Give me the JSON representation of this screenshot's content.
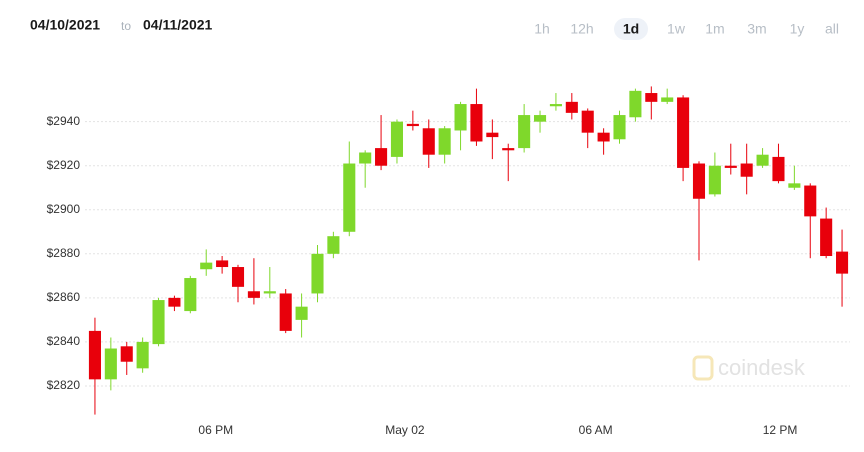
{
  "header": {
    "from": "04/10/2021",
    "separator": "to",
    "to": "04/11/2021",
    "ranges": [
      "1h",
      "12h",
      "1d",
      "1w",
      "1m",
      "3m",
      "1y",
      "all"
    ],
    "active_range": "1d"
  },
  "watermark": "coindesk",
  "chart_data": {
    "type": "candlestick",
    "categories": [
      null,
      null,
      null,
      null,
      null,
      null,
      null,
      null,
      null,
      null,
      null,
      null,
      null,
      null,
      null,
      null,
      null,
      null,
      null,
      null,
      null,
      null,
      null,
      null,
      null,
      null,
      null,
      null,
      null,
      null,
      null,
      null,
      null,
      null,
      null,
      null,
      null,
      null,
      null,
      null,
      null,
      null,
      null,
      null,
      null,
      null,
      null,
      null
    ],
    "open": [
      2845,
      2823,
      2838,
      2828,
      2839,
      2860,
      2854,
      2873,
      2877,
      2874,
      2863,
      2862,
      2862,
      2850,
      2862,
      2880,
      2890,
      2921,
      2928,
      2924,
      2939,
      2937,
      2925,
      2936,
      2948,
      2935,
      2928,
      2928,
      2940,
      2947,
      2949,
      2945,
      2935,
      2932,
      2942,
      2953,
      2949,
      2951,
      2921,
      2907,
      2920,
      2921,
      2920,
      2924,
      2910,
      2911,
      2896,
      2881
    ],
    "high": [
      2851,
      2842,
      2840,
      2842,
      2860,
      2861,
      2870,
      2882,
      2879,
      2875,
      2878,
      2874,
      2864,
      2862,
      2884,
      2890,
      2931,
      2927,
      2943,
      2941,
      2945,
      2941,
      2938,
      2949,
      2955,
      2941,
      2930,
      2948,
      2945,
      2953,
      2953,
      2946,
      2937,
      2945,
      2955,
      2956,
      2955,
      2952,
      2922,
      2926,
      2930,
      2930,
      2928,
      2930,
      2920,
      2912,
      2901,
      2891
    ],
    "low": [
      2807,
      2818,
      2825,
      2826,
      2838,
      2854,
      2853,
      2870,
      2871,
      2858,
      2857,
      2860,
      2844,
      2842,
      2858,
      2878,
      2888,
      2910,
      2918,
      2921,
      2936,
      2919,
      2921,
      2927,
      2929,
      2923,
      2913,
      2926,
      2935,
      2945,
      2941,
      2928,
      2925,
      2930,
      2940,
      2941,
      2948,
      2913,
      2877,
      2906,
      2916,
      2907,
      2919,
      2912,
      2909,
      2878,
      2878,
      2856
    ],
    "close": [
      2823,
      2837,
      2831,
      2840,
      2859,
      2856,
      2869,
      2876,
      2874,
      2865,
      2860,
      2863,
      2845,
      2856,
      2880,
      2888,
      2921,
      2926,
      2920,
      2940,
      2938,
      2925,
      2937,
      2948,
      2931,
      2933,
      2927,
      2943,
      2943,
      2948,
      2944,
      2935,
      2931,
      2943,
      2954,
      2949,
      2951,
      2919,
      2905,
      2920,
      2919,
      2915,
      2925,
      2913,
      2912,
      2897,
      2879,
      2871
    ],
    "up_color": "#7fd82b",
    "down_color": "#e8000b",
    "ylim": [
      2800,
      2968
    ],
    "yticks": [
      {
        "value": 2820,
        "label": "$2820"
      },
      {
        "value": 2840,
        "label": "$2840"
      },
      {
        "value": 2860,
        "label": "$2860"
      },
      {
        "value": 2880,
        "label": "$2880"
      },
      {
        "value": 2900,
        "label": "$2900"
      },
      {
        "value": 2920,
        "label": "$2920"
      },
      {
        "value": 2940,
        "label": "$2940"
      }
    ],
    "xticks": [
      {
        "value": 7.6,
        "label": "06 PM"
      },
      {
        "value": 19.5,
        "label": "May 02"
      },
      {
        "value": 31.5,
        "label": "06 AM"
      },
      {
        "value": 43.1,
        "label": "12 PM"
      }
    ],
    "grid": true
  }
}
